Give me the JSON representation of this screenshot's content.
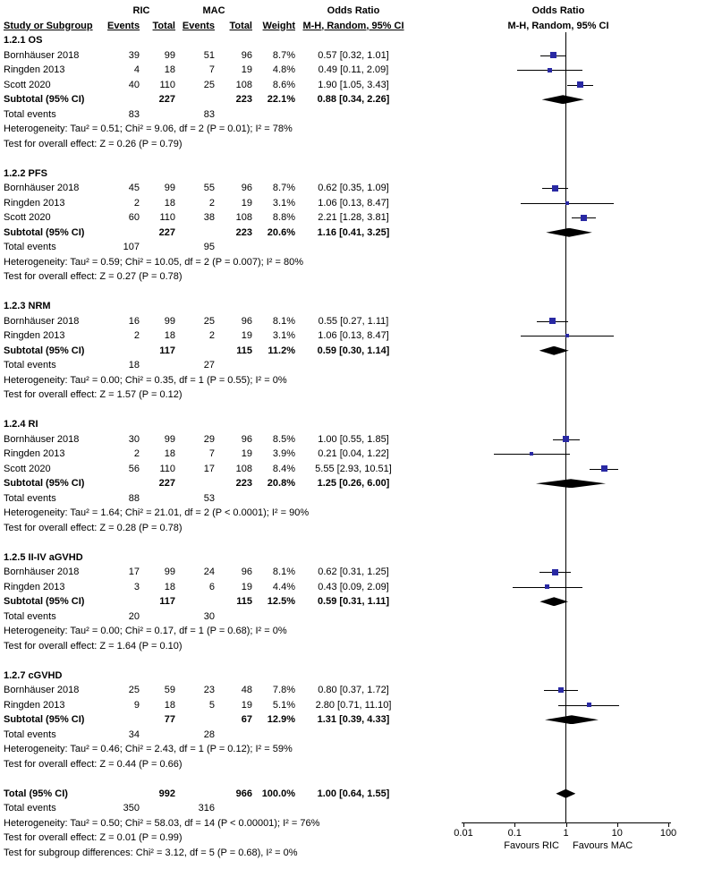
{
  "colors": {
    "marker": "#2929a3",
    "ci_line": "#000000",
    "diamond": "#000000",
    "axis": "#000000"
  },
  "header": {
    "study": "Study or Subgroup",
    "group1": "RIC",
    "group2": "MAC",
    "events": "Events",
    "total": "Total",
    "weight": "Weight",
    "or_title": "Odds Ratio",
    "method": "M-H, Random, 95% CI"
  },
  "axis": {
    "tick_labels": [
      "0.01",
      "0.1",
      "1",
      "10",
      "100"
    ],
    "tick_values": [
      0.01,
      0.1,
      1,
      10,
      100
    ],
    "left_label": "Favours RIC",
    "right_label": "Favours MAC"
  },
  "chart_data": {
    "type": "forest",
    "effect_measure": "Odds Ratio",
    "model": "M-H, Random, 95% CI",
    "x_scale": "log10",
    "xlim": [
      0.01,
      100
    ],
    "sections": [
      {
        "title": "1.2.1 OS",
        "studies": [
          {
            "name": "Bornhäuser 2018",
            "e1": "39",
            "t1": "99",
            "e2": "51",
            "t2": "96",
            "weight": "8.7%",
            "w": 8.7,
            "ci": "0.57 [0.32, 1.01]",
            "or": 0.57,
            "lo": 0.32,
            "hi": 1.01
          },
          {
            "name": "Ringden 2013",
            "e1": "4",
            "t1": "18",
            "e2": "7",
            "t2": "19",
            "weight": "4.8%",
            "w": 4.8,
            "ci": "0.49 [0.11, 2.09]",
            "or": 0.49,
            "lo": 0.11,
            "hi": 2.09
          },
          {
            "name": "Scott 2020",
            "e1": "40",
            "t1": "110",
            "e2": "25",
            "t2": "108",
            "weight": "8.6%",
            "w": 8.6,
            "ci": "1.90 [1.05, 3.43]",
            "or": 1.9,
            "lo": 1.05,
            "hi": 3.43
          }
        ],
        "subtotal": {
          "label": "Subtotal (95% CI)",
          "t1": "227",
          "t2": "223",
          "weight": "22.1%",
          "ci": "0.88 [0.34, 2.26]",
          "or": 0.88,
          "lo": 0.34,
          "hi": 2.26
        },
        "total_events": {
          "label": "Total events",
          "e1": "83",
          "e2": "83"
        },
        "heterogeneity": "Heterogeneity: Tau² = 0.51; Chi² = 9.06, df = 2 (P = 0.01); I² = 78%",
        "overall": "Test for overall effect: Z = 0.26 (P = 0.79)"
      },
      {
        "title": "1.2.2 PFS",
        "studies": [
          {
            "name": "Bornhäuser 2018",
            "e1": "45",
            "t1": "99",
            "e2": "55",
            "t2": "96",
            "weight": "8.7%",
            "w": 8.7,
            "ci": "0.62 [0.35, 1.09]",
            "or": 0.62,
            "lo": 0.35,
            "hi": 1.09
          },
          {
            "name": "Ringden 2013",
            "e1": "2",
            "t1": "18",
            "e2": "2",
            "t2": "19",
            "weight": "3.1%",
            "w": 3.1,
            "ci": "1.06 [0.13, 8.47]",
            "or": 1.06,
            "lo": 0.13,
            "hi": 8.47
          },
          {
            "name": "Scott 2020",
            "e1": "60",
            "t1": "110",
            "e2": "38",
            "t2": "108",
            "weight": "8.8%",
            "w": 8.8,
            "ci": "2.21 [1.28, 3.81]",
            "or": 2.21,
            "lo": 1.28,
            "hi": 3.81
          }
        ],
        "subtotal": {
          "label": "Subtotal (95% CI)",
          "t1": "227",
          "t2": "223",
          "weight": "20.6%",
          "ci": "1.16 [0.41, 3.25]",
          "or": 1.16,
          "lo": 0.41,
          "hi": 3.25
        },
        "total_events": {
          "label": "Total events",
          "e1": "107",
          "e2": "95"
        },
        "heterogeneity": "Heterogeneity: Tau² = 0.59; Chi² = 10.05, df = 2 (P = 0.007); I² = 80%",
        "overall": "Test for overall effect: Z = 0.27 (P = 0.78)"
      },
      {
        "title": "1.2.3 NRM",
        "studies": [
          {
            "name": "Bornhäuser 2018",
            "e1": "16",
            "t1": "99",
            "e2": "25",
            "t2": "96",
            "weight": "8.1%",
            "w": 8.1,
            "ci": "0.55 [0.27, 1.11]",
            "or": 0.55,
            "lo": 0.27,
            "hi": 1.11
          },
          {
            "name": "Ringden 2013",
            "e1": "2",
            "t1": "18",
            "e2": "2",
            "t2": "19",
            "weight": "3.1%",
            "w": 3.1,
            "ci": "1.06 [0.13, 8.47]",
            "or": 1.06,
            "lo": 0.13,
            "hi": 8.47
          }
        ],
        "subtotal": {
          "label": "Subtotal (95% CI)",
          "t1": "117",
          "t2": "115",
          "weight": "11.2%",
          "ci": "0.59 [0.30, 1.14]",
          "or": 0.59,
          "lo": 0.3,
          "hi": 1.14
        },
        "total_events": {
          "label": "Total events",
          "e1": "18",
          "e2": "27"
        },
        "heterogeneity": "Heterogeneity: Tau² = 0.00; Chi² = 0.35, df = 1 (P = 0.55); I² = 0%",
        "overall": "Test for overall effect: Z = 1.57 (P = 0.12)"
      },
      {
        "title": "1.2.4 RI",
        "studies": [
          {
            "name": "Bornhäuser 2018",
            "e1": "30",
            "t1": "99",
            "e2": "29",
            "t2": "96",
            "weight": "8.5%",
            "w": 8.5,
            "ci": "1.00 [0.55, 1.85]",
            "or": 1.0,
            "lo": 0.55,
            "hi": 1.85
          },
          {
            "name": "Ringden 2013",
            "e1": "2",
            "t1": "18",
            "e2": "7",
            "t2": "19",
            "weight": "3.9%",
            "w": 3.9,
            "ci": "0.21 [0.04, 1.22]",
            "or": 0.21,
            "lo": 0.04,
            "hi": 1.22
          },
          {
            "name": "Scott 2020",
            "e1": "56",
            "t1": "110",
            "e2": "17",
            "t2": "108",
            "weight": "8.4%",
            "w": 8.4,
            "ci": "5.55 [2.93, 10.51]",
            "or": 5.55,
            "lo": 2.93,
            "hi": 10.51
          }
        ],
        "subtotal": {
          "label": "Subtotal (95% CI)",
          "t1": "227",
          "t2": "223",
          "weight": "20.8%",
          "ci": "1.25 [0.26, 6.00]",
          "or": 1.25,
          "lo": 0.26,
          "hi": 6.0
        },
        "total_events": {
          "label": "Total events",
          "e1": "88",
          "e2": "53"
        },
        "heterogeneity": "Heterogeneity: Tau² = 1.64; Chi² = 21.01, df = 2 (P < 0.0001); I² = 90%",
        "overall": "Test for overall effect: Z = 0.28 (P = 0.78)"
      },
      {
        "title": "1.2.5 II-IV aGVHD",
        "studies": [
          {
            "name": "Bornhäuser 2018",
            "e1": "17",
            "t1": "99",
            "e2": "24",
            "t2": "96",
            "weight": "8.1%",
            "w": 8.1,
            "ci": "0.62 [0.31, 1.25]",
            "or": 0.62,
            "lo": 0.31,
            "hi": 1.25
          },
          {
            "name": "Ringden 2013",
            "e1": "3",
            "t1": "18",
            "e2": "6",
            "t2": "19",
            "weight": "4.4%",
            "w": 4.4,
            "ci": "0.43 [0.09, 2.09]",
            "or": 0.43,
            "lo": 0.09,
            "hi": 2.09
          }
        ],
        "subtotal": {
          "label": "Subtotal (95% CI)",
          "t1": "117",
          "t2": "115",
          "weight": "12.5%",
          "ci": "0.59 [0.31, 1.11]",
          "or": 0.59,
          "lo": 0.31,
          "hi": 1.11
        },
        "total_events": {
          "label": "Total events",
          "e1": "20",
          "e2": "30"
        },
        "heterogeneity": "Heterogeneity: Tau² = 0.00; Chi² = 0.17, df = 1 (P = 0.68); I² = 0%",
        "overall": "Test for overall effect: Z = 1.64 (P = 0.10)"
      },
      {
        "title": "1.2.7 cGVHD",
        "studies": [
          {
            "name": "Bornhäuser 2018",
            "e1": "25",
            "t1": "59",
            "e2": "23",
            "t2": "48",
            "weight": "7.8%",
            "w": 7.8,
            "ci": "0.80 [0.37, 1.72]",
            "or": 0.8,
            "lo": 0.37,
            "hi": 1.72
          },
          {
            "name": "Ringden 2013",
            "e1": "9",
            "t1": "18",
            "e2": "5",
            "t2": "19",
            "weight": "5.1%",
            "w": 5.1,
            "ci": "2.80 [0.71, 11.10]",
            "or": 2.8,
            "lo": 0.71,
            "hi": 11.1
          }
        ],
        "subtotal": {
          "label": "Subtotal (95% CI)",
          "t1": "77",
          "t2": "67",
          "weight": "12.9%",
          "ci": "1.31 [0.39, 4.33]",
          "or": 1.31,
          "lo": 0.39,
          "hi": 4.33
        },
        "total_events": {
          "label": "Total events",
          "e1": "34",
          "e2": "28"
        },
        "heterogeneity": "Heterogeneity: Tau² = 0.46; Chi² = 2.43, df = 1 (P = 0.12); I² = 59%",
        "overall": "Test for overall effect: Z = 0.44 (P = 0.66)"
      }
    ],
    "total": {
      "label": "Total (95% CI)",
      "t1": "992",
      "t2": "966",
      "weight": "100.0%",
      "ci": "1.00 [0.64, 1.55]",
      "or": 1.0,
      "lo": 0.64,
      "hi": 1.55,
      "total_events": {
        "label": "Total events",
        "e1": "350",
        "e2": "316"
      },
      "heterogeneity": "Heterogeneity: Tau² = 0.50; Chi² = 58.03, df = 14 (P < 0.00001); I² = 76%",
      "overall": "Test for overall effect: Z = 0.01 (P = 0.99)",
      "subgroup_diff": "Test for subgroup differences: Chi² = 3.12, df = 5 (P = 0.68), I² = 0%"
    }
  }
}
